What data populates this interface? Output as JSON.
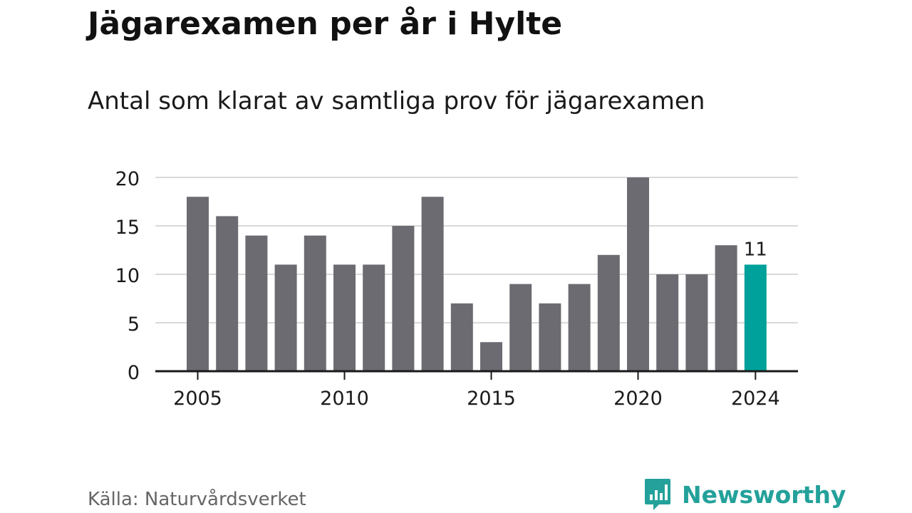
{
  "title": "Jägarexamen per år i Hylte",
  "subtitle": "Antal som klarat av samtliga prov för jägarexamen",
  "source": "Källa: Naturvårdsverket",
  "brand": {
    "name": "Newsworthy",
    "icon": "newsworthy-logo-icon"
  },
  "colors": {
    "bar": "#6c6b72",
    "highlight": "#00a19a",
    "grid": "#d9d9d9",
    "axis": "#1a1a1a",
    "brand": "#23a19a"
  },
  "chart_data": {
    "type": "bar",
    "title": "Jägarexamen per år i Hylte",
    "subtitle": "Antal som klarat av samtliga prov för jägarexamen",
    "xlabel": "",
    "ylabel": "",
    "categories": [
      2005,
      2006,
      2007,
      2008,
      2009,
      2010,
      2011,
      2012,
      2013,
      2014,
      2015,
      2016,
      2017,
      2018,
      2019,
      2020,
      2021,
      2022,
      2023,
      2024
    ],
    "values": [
      18,
      16,
      14,
      11,
      14,
      11,
      11,
      15,
      18,
      7,
      3,
      9,
      7,
      9,
      12,
      20,
      10,
      10,
      13,
      11
    ],
    "ylim": [
      0,
      20
    ],
    "yticks": [
      0,
      5,
      10,
      15,
      20
    ],
    "xticks": [
      2005,
      2010,
      2015,
      2020,
      2024
    ],
    "highlight": {
      "category": 2024,
      "label": "11"
    },
    "grid": true,
    "legend": "none"
  }
}
